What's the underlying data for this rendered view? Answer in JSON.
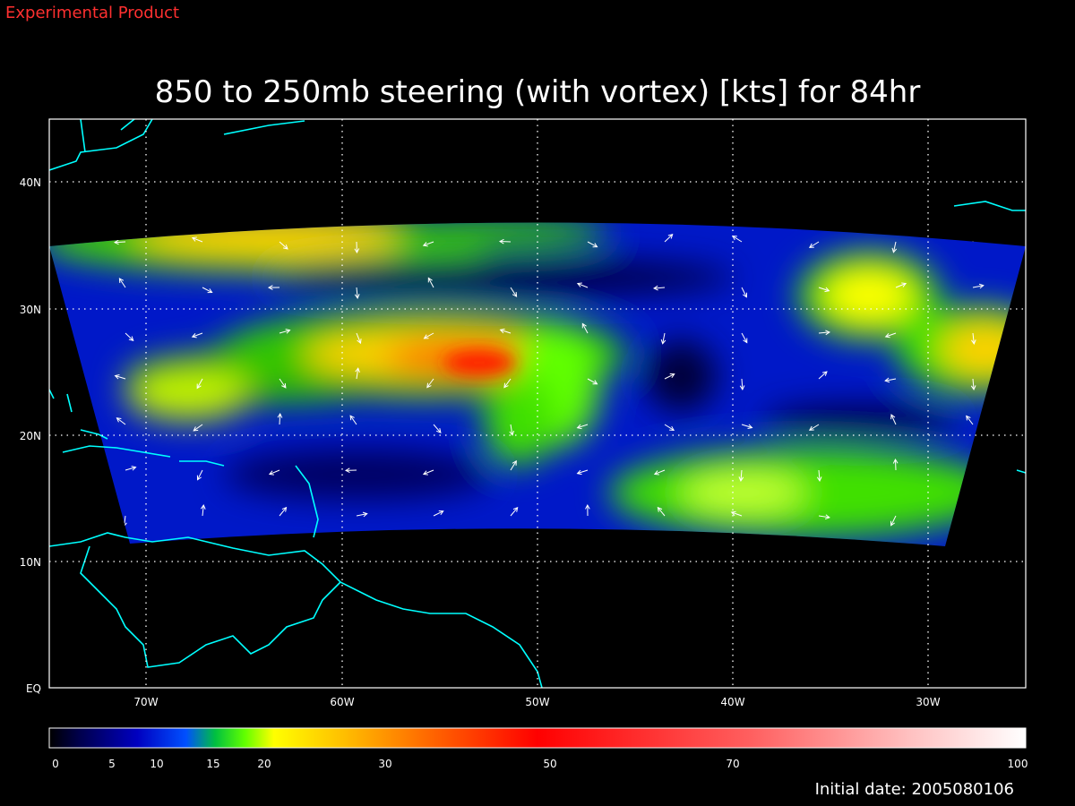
{
  "header": {
    "label": "Experimental Product",
    "title": "850 to 250mb steering (with vortex) [kts] for 84hr"
  },
  "map": {
    "lat_labels": [
      "40N",
      "30N",
      "20N",
      "10N",
      "EQ"
    ],
    "lon_labels": [
      "70W",
      "60W",
      "50W",
      "40W",
      "30W"
    ]
  },
  "colorbar": {
    "labels": [
      0,
      5,
      10,
      15,
      20,
      30,
      50,
      70,
      100
    ]
  },
  "footer": {
    "initial_date": "Initial date: 2005080106"
  }
}
